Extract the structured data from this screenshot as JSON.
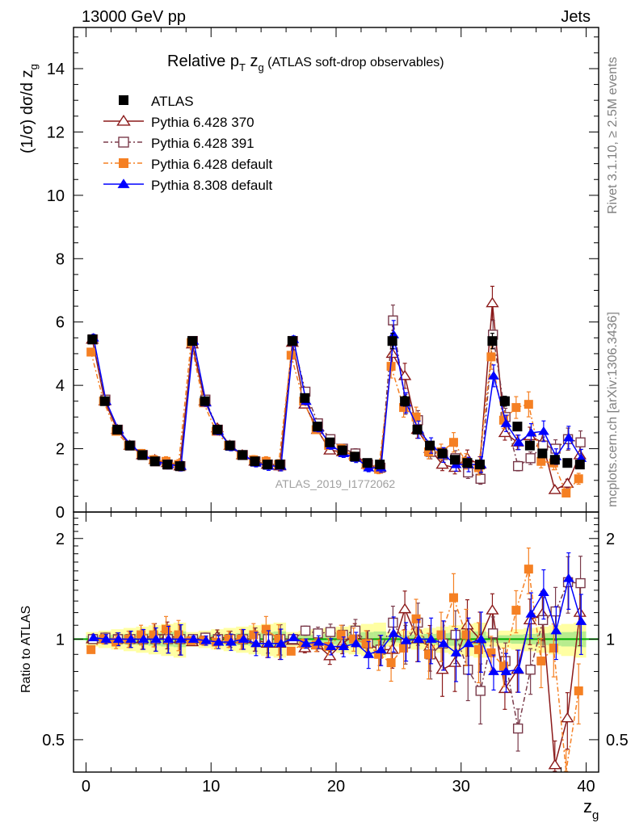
{
  "header": {
    "left_text": "13000 GeV pp",
    "right_text": "Jets"
  },
  "side_labels": {
    "rivet": "Rivet 3.1.10, ≥ 2.5M events",
    "mcplots": "mcplots.cern.ch [arXiv:1306.3436]"
  },
  "analysis_id": "ATLAS_2019_I1772062",
  "chart_data": [
    {
      "type": "scatter",
      "title_main": "Relative p",
      "title_sub1": "T",
      "title_mid": " z",
      "title_sub2": "g",
      "title_rest": " (ATLAS soft-drop observables)",
      "ylabel_main": "(1/σ) dσ/d z",
      "ylabel_sub": "g",
      "ylim": [
        0,
        15.3
      ],
      "yticks": [
        0,
        2,
        4,
        6,
        8,
        10,
        12,
        14
      ],
      "ytick_labels": [
        "0",
        "2",
        "4",
        "6",
        "8",
        "10",
        "12",
        "14"
      ],
      "x": [
        0.5,
        1.5,
        2.5,
        3.5,
        4.5,
        5.5,
        6.5,
        7.5,
        8.5,
        9.5,
        10.5,
        11.5,
        12.5,
        13.5,
        14.5,
        15.5,
        16.5,
        17.5,
        18.5,
        19.5,
        20.5,
        21.5,
        22.5,
        23.5,
        24.5,
        25.5,
        26.5,
        27.5,
        28.5,
        29.5,
        30.5,
        31.5,
        32.5,
        33.5,
        34.5,
        35.5,
        36.5,
        37.5,
        38.5,
        39.5
      ],
      "legend_position": "top-left",
      "series": [
        {
          "name": "ATLAS",
          "color": "#000000",
          "marker": "square-filled",
          "values": [
            5.45,
            3.5,
            2.6,
            2.1,
            1.8,
            1.6,
            1.5,
            1.45,
            5.4,
            3.5,
            2.6,
            2.1,
            1.8,
            1.6,
            1.5,
            1.5,
            5.4,
            3.6,
            2.7,
            2.2,
            1.95,
            1.75,
            1.55,
            1.5,
            5.4,
            3.5,
            2.6,
            2.1,
            1.85,
            1.65,
            1.55,
            1.5,
            5.4,
            3.5,
            2.7,
            2.1,
            1.85,
            1.65,
            1.55,
            1.5
          ]
        },
        {
          "name": "Pythia 6.428 370",
          "color": "#8b1a1a",
          "marker": "triangle-open",
          "values": [
            5.45,
            3.5,
            2.6,
            2.1,
            1.8,
            1.65,
            1.55,
            1.45,
            5.3,
            3.5,
            2.65,
            2.1,
            1.8,
            1.6,
            1.5,
            1.45,
            5.35,
            3.4,
            2.6,
            1.95,
            1.9,
            1.8,
            1.5,
            1.4,
            5.0,
            4.3,
            2.6,
            2.0,
            1.5,
            1.4,
            1.7,
            1.5,
            6.6,
            2.5,
            2.2,
            2.4,
            2.2,
            0.7,
            0.9,
            1.8
          ]
        },
        {
          "name": "Pythia 6.428 391",
          "color": "#7a3b4b",
          "marker": "square-open",
          "values": [
            5.45,
            3.55,
            2.6,
            2.1,
            1.8,
            1.6,
            1.5,
            1.45,
            5.4,
            3.55,
            2.6,
            2.1,
            1.8,
            1.6,
            1.5,
            1.5,
            5.4,
            3.8,
            2.8,
            2.3,
            2.0,
            1.85,
            1.5,
            1.4,
            6.05,
            3.4,
            2.9,
            1.9,
            1.8,
            1.7,
            1.25,
            1.05,
            5.6,
            3.0,
            1.45,
            1.7,
            2.1,
            2.0,
            2.3,
            2.2
          ]
        },
        {
          "name": "Pythia 6.428 default",
          "color": "#f58023",
          "marker": "square-filled",
          "values": [
            5.05,
            3.5,
            2.55,
            2.1,
            1.85,
            1.65,
            1.6,
            1.5,
            5.35,
            3.45,
            2.55,
            2.1,
            1.8,
            1.65,
            1.6,
            1.5,
            4.95,
            3.5,
            2.6,
            2.1,
            2.0,
            1.75,
            1.5,
            1.35,
            4.6,
            3.3,
            3.0,
            1.9,
            1.9,
            2.2,
            1.6,
            1.4,
            4.9,
            2.9,
            3.3,
            3.4,
            1.6,
            1.55,
            0.6,
            1.05
          ]
        },
        {
          "name": "Pythia 8.308 default",
          "color": "#0000ff",
          "marker": "triangle-filled",
          "values": [
            5.5,
            3.5,
            2.6,
            2.1,
            1.8,
            1.6,
            1.5,
            1.45,
            5.4,
            3.45,
            2.55,
            2.05,
            1.8,
            1.55,
            1.45,
            1.45,
            5.45,
            3.5,
            2.65,
            2.1,
            1.85,
            1.7,
            1.4,
            1.4,
            5.6,
            3.45,
            2.6,
            2.1,
            1.8,
            1.5,
            1.5,
            1.5,
            4.3,
            2.8,
            2.2,
            2.5,
            2.55,
            1.75,
            2.35,
            1.7
          ]
        }
      ]
    },
    {
      "type": "scatter",
      "ylabel": "Ratio to ATLAS",
      "xlabel_main": "z",
      "xlabel_sub": "g",
      "xlim": [
        -1,
        41
      ],
      "ylim": [
        0.4,
        2.4
      ],
      "xticks": [
        0,
        10,
        20,
        30,
        40
      ],
      "xtick_labels": [
        "0",
        "10",
        "20",
        "30",
        "40"
      ],
      "yticks": [
        0.5,
        1,
        2
      ],
      "ytick_labels": [
        "0.5",
        "1",
        "2"
      ],
      "reference_band_color": "#ffff66",
      "reference_line_color": "#00aa00",
      "series": [
        {
          "name": "Pythia 6.428 370",
          "color": "#8b1a1a",
          "marker": "triangle-open",
          "values": [
            1.0,
            1.0,
            1.0,
            1.0,
            1.0,
            1.03,
            1.03,
            1.0,
            0.98,
            1.0,
            1.02,
            1.0,
            1.0,
            1.0,
            0.97,
            0.97,
            0.99,
            0.94,
            0.96,
            0.89,
            0.97,
            1.03,
            0.97,
            0.93,
            0.93,
            1.23,
            1.0,
            0.95,
            0.81,
            0.85,
            1.1,
            1.0,
            1.22,
            0.71,
            0.81,
            1.14,
            1.19,
            0.42,
            0.58,
            1.2
          ]
        },
        {
          "name": "Pythia 6.428 391",
          "color": "#7a3b4b",
          "marker": "square-open",
          "values": [
            1.0,
            1.01,
            1.0,
            1.0,
            1.0,
            1.0,
            1.0,
            1.0,
            1.0,
            1.01,
            1.0,
            1.0,
            1.0,
            1.0,
            1.0,
            1.0,
            1.0,
            1.06,
            1.04,
            1.05,
            1.03,
            1.06,
            0.97,
            0.93,
            1.12,
            0.97,
            1.12,
            0.9,
            0.97,
            1.03,
            0.81,
            0.7,
            1.04,
            0.86,
            0.54,
            0.81,
            1.14,
            1.21,
            1.48,
            1.47
          ]
        },
        {
          "name": "Pythia 6.428 default",
          "color": "#f58023",
          "marker": "square-filled",
          "values": [
            0.93,
            1.0,
            0.98,
            1.0,
            1.03,
            1.03,
            1.07,
            1.03,
            0.99,
            0.99,
            0.98,
            1.0,
            1.0,
            1.03,
            1.07,
            1.0,
            0.92,
            0.97,
            0.96,
            0.95,
            1.03,
            1.0,
            0.97,
            0.9,
            0.85,
            0.94,
            1.15,
            0.9,
            1.03,
            1.33,
            1.03,
            0.93,
            0.91,
            0.83,
            1.22,
            1.62,
            0.86,
            0.94,
            0.39,
            0.7
          ]
        },
        {
          "name": "Pythia 8.308 default",
          "color": "#0000ff",
          "marker": "triangle-filled",
          "values": [
            1.01,
            1.0,
            1.0,
            1.0,
            1.0,
            1.0,
            1.0,
            1.0,
            1.0,
            0.99,
            0.98,
            0.98,
            1.0,
            0.97,
            0.97,
            0.97,
            1.01,
            0.97,
            0.98,
            0.95,
            0.95,
            0.97,
            0.9,
            0.93,
            1.04,
            0.99,
            1.0,
            1.0,
            0.97,
            0.91,
            0.97,
            1.0,
            0.8,
            0.8,
            0.81,
            1.19,
            1.38,
            1.06,
            1.52,
            1.13
          ]
        }
      ]
    }
  ]
}
